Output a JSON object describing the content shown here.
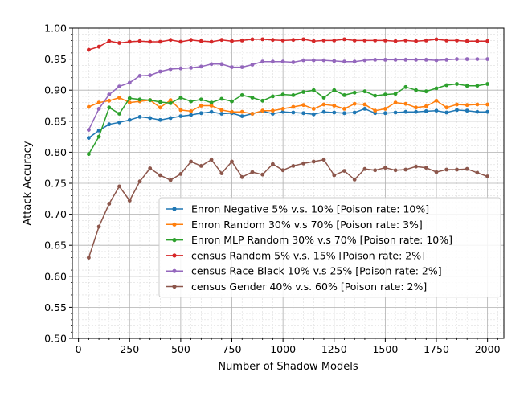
{
  "chart_data": {
    "type": "line",
    "title": "",
    "xlabel": "Number of Shadow Models",
    "ylabel": "Attack Accuracy",
    "xlim": [
      -30,
      2080
    ],
    "ylim": [
      0.5,
      1.0
    ],
    "x_ticks": [
      0,
      250,
      500,
      750,
      1000,
      1250,
      1500,
      1750,
      2000
    ],
    "y_ticks": [
      0.5,
      0.55,
      0.6,
      0.65,
      0.7,
      0.75,
      0.8,
      0.85,
      0.9,
      0.95,
      1.0
    ],
    "grid": "major and minor",
    "legend_position": "lower-right",
    "x": [
      50,
      100,
      150,
      200,
      250,
      300,
      350,
      400,
      450,
      500,
      550,
      600,
      650,
      700,
      750,
      800,
      850,
      900,
      950,
      1000,
      1050,
      1100,
      1150,
      1200,
      1250,
      1300,
      1350,
      1400,
      1450,
      1500,
      1550,
      1600,
      1650,
      1700,
      1750,
      1800,
      1850,
      1900,
      1950,
      2000
    ],
    "series": [
      {
        "name": "Enron Negative 5% v.s. 10% [Poison rate: 10%]",
        "color": "#1f77b4",
        "values": [
          0.823,
          0.835,
          0.845,
          0.848,
          0.852,
          0.857,
          0.855,
          0.852,
          0.855,
          0.858,
          0.86,
          0.863,
          0.865,
          0.862,
          0.863,
          0.858,
          0.862,
          0.866,
          0.862,
          0.865,
          0.864,
          0.863,
          0.861,
          0.865,
          0.864,
          0.863,
          0.864,
          0.87,
          0.863,
          0.863,
          0.864,
          0.865,
          0.865,
          0.866,
          0.867,
          0.864,
          0.868,
          0.867,
          0.865,
          0.865
        ]
      },
      {
        "name": "Enron Random 30% v.s 70% [Poison rate: 3%]",
        "color": "#ff7f0e",
        "values": [
          0.873,
          0.88,
          0.883,
          0.888,
          0.88,
          0.882,
          0.884,
          0.872,
          0.884,
          0.868,
          0.866,
          0.875,
          0.875,
          0.868,
          0.865,
          0.865,
          0.862,
          0.867,
          0.867,
          0.87,
          0.873,
          0.876,
          0.87,
          0.877,
          0.875,
          0.87,
          0.878,
          0.877,
          0.867,
          0.87,
          0.88,
          0.878,
          0.872,
          0.874,
          0.883,
          0.872,
          0.877,
          0.876,
          0.877,
          0.877
        ]
      },
      {
        "name": "Enron MLP Random 30% v.s 70% [Poison rate: 10%]",
        "color": "#2ca02c",
        "values": [
          0.797,
          0.825,
          0.872,
          0.862,
          0.887,
          0.885,
          0.884,
          0.881,
          0.879,
          0.888,
          0.882,
          0.885,
          0.88,
          0.886,
          0.882,
          0.892,
          0.888,
          0.883,
          0.89,
          0.893,
          0.892,
          0.897,
          0.9,
          0.888,
          0.9,
          0.892,
          0.896,
          0.898,
          0.891,
          0.893,
          0.894,
          0.905,
          0.9,
          0.898,
          0.903,
          0.908,
          0.91,
          0.907,
          0.907,
          0.91
        ]
      },
      {
        "name": "census Random 5% v.s. 15% [Poison rate: 2%]",
        "color": "#d62728",
        "values": [
          0.965,
          0.97,
          0.979,
          0.976,
          0.978,
          0.979,
          0.978,
          0.978,
          0.981,
          0.978,
          0.981,
          0.979,
          0.978,
          0.981,
          0.979,
          0.98,
          0.982,
          0.982,
          0.981,
          0.98,
          0.981,
          0.982,
          0.979,
          0.98,
          0.98,
          0.982,
          0.98,
          0.98,
          0.98,
          0.98,
          0.979,
          0.98,
          0.979,
          0.98,
          0.982,
          0.98,
          0.98,
          0.979,
          0.979,
          0.979
        ]
      },
      {
        "name": "census Race Black 10% v.s 25% [Poison rate: 2%]",
        "color": "#9467bd",
        "values": [
          0.836,
          0.87,
          0.893,
          0.906,
          0.912,
          0.923,
          0.924,
          0.93,
          0.934,
          0.935,
          0.936,
          0.938,
          0.942,
          0.942,
          0.937,
          0.937,
          0.941,
          0.946,
          0.946,
          0.946,
          0.945,
          0.948,
          0.948,
          0.948,
          0.947,
          0.946,
          0.946,
          0.948,
          0.949,
          0.949,
          0.949,
          0.949,
          0.949,
          0.949,
          0.948,
          0.949,
          0.95,
          0.95,
          0.95,
          0.95
        ]
      },
      {
        "name": "census Gender 40% v.s. 60% [Poison rate: 2%]",
        "color": "#8c564b",
        "values": [
          0.63,
          0.68,
          0.717,
          0.745,
          0.722,
          0.753,
          0.774,
          0.763,
          0.755,
          0.765,
          0.785,
          0.778,
          0.788,
          0.766,
          0.785,
          0.76,
          0.768,
          0.764,
          0.781,
          0.771,
          0.778,
          0.782,
          0.785,
          0.788,
          0.763,
          0.77,
          0.756,
          0.773,
          0.771,
          0.775,
          0.771,
          0.772,
          0.777,
          0.775,
          0.768,
          0.772,
          0.772,
          0.773,
          0.767,
          0.761
        ]
      }
    ]
  }
}
